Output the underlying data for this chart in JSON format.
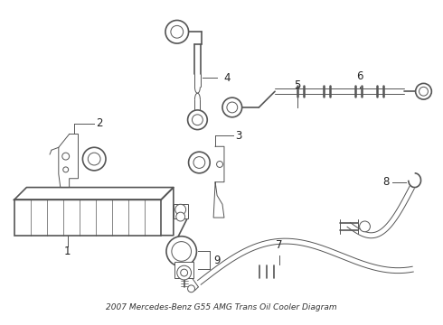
{
  "title": "2007 Mercedes-Benz G55 AMG Trans Oil Cooler Diagram",
  "bg_color": "#ffffff",
  "line_color": "#555555",
  "label_color": "#222222",
  "title_color": "#333333",
  "title_fontsize": 6.5,
  "label_fontsize": 8.5
}
